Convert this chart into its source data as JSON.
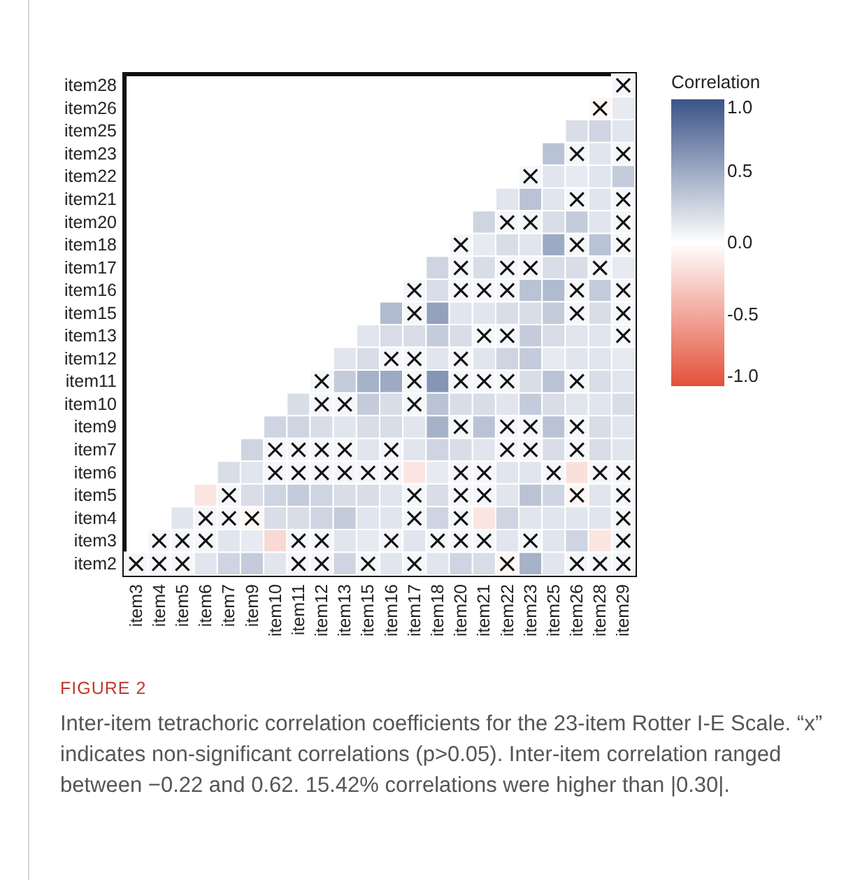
{
  "chart_data": {
    "type": "heatmap",
    "categories": [
      "item3",
      "item4",
      "item5",
      "item6",
      "item7",
      "item9",
      "item10",
      "item11",
      "item12",
      "item13",
      "item15",
      "item16",
      "item17",
      "item18",
      "item20",
      "item21",
      "item22",
      "item23",
      "item25",
      "item26",
      "item28",
      "item29"
    ],
    "y_categories": [
      "item28",
      "item26",
      "item25",
      "item23",
      "item22",
      "item21",
      "item20",
      "item18",
      "item17",
      "item16",
      "item15",
      "item13",
      "item12",
      "item11",
      "item10",
      "item9",
      "item7",
      "item6",
      "item5",
      "item4",
      "item3",
      "item2"
    ],
    "cells": [
      [
        null,
        null,
        null,
        null,
        null,
        null,
        null,
        null,
        null,
        null,
        null,
        null,
        null,
        null,
        null,
        null,
        null,
        null,
        null,
        null,
        null,
        0.05
      ],
      [
        null,
        null,
        null,
        null,
        null,
        null,
        null,
        null,
        null,
        null,
        null,
        null,
        null,
        null,
        null,
        null,
        null,
        null,
        null,
        null,
        -0.05,
        0.12
      ],
      [
        null,
        null,
        null,
        null,
        null,
        null,
        null,
        null,
        null,
        null,
        null,
        null,
        null,
        null,
        null,
        null,
        null,
        null,
        null,
        0.2,
        0.25,
        0.15
      ],
      [
        null,
        null,
        null,
        null,
        null,
        null,
        null,
        null,
        null,
        null,
        null,
        null,
        null,
        null,
        null,
        null,
        null,
        null,
        0.35,
        0.05,
        0.15,
        0.05
      ],
      [
        null,
        null,
        null,
        null,
        null,
        null,
        null,
        null,
        null,
        null,
        null,
        null,
        null,
        null,
        null,
        null,
        null,
        0.05,
        0.15,
        0.12,
        0.15,
        0.3
      ],
      [
        null,
        null,
        null,
        null,
        null,
        null,
        null,
        null,
        null,
        null,
        null,
        null,
        null,
        null,
        null,
        null,
        0.15,
        0.35,
        0.15,
        0.05,
        0.15,
        0.05
      ],
      [
        null,
        null,
        null,
        null,
        null,
        null,
        null,
        null,
        null,
        null,
        null,
        null,
        null,
        null,
        null,
        0.25,
        0.05,
        0.05,
        0.2,
        0.3,
        0.15,
        0.05
      ],
      [
        null,
        null,
        null,
        null,
        null,
        null,
        null,
        null,
        null,
        null,
        null,
        null,
        null,
        null,
        0.05,
        0.12,
        0.2,
        0.15,
        0.5,
        0.05,
        0.35,
        0.05
      ],
      [
        null,
        null,
        null,
        null,
        null,
        null,
        null,
        null,
        null,
        null,
        null,
        null,
        null,
        0.25,
        0.05,
        0.2,
        0.05,
        0.05,
        0.2,
        0.2,
        0.05,
        0.12
      ],
      [
        null,
        null,
        null,
        null,
        null,
        null,
        null,
        null,
        null,
        null,
        null,
        null,
        0.05,
        0.2,
        0.05,
        0.05,
        0.05,
        0.35,
        0.4,
        0.05,
        0.3,
        0.05
      ],
      [
        null,
        null,
        null,
        null,
        null,
        null,
        null,
        null,
        null,
        null,
        null,
        0.4,
        0.05,
        0.55,
        0.15,
        0.15,
        0.2,
        0.2,
        0.3,
        0.05,
        0.2,
        0.05
      ],
      [
        null,
        null,
        null,
        null,
        null,
        null,
        null,
        null,
        null,
        null,
        0.15,
        0.2,
        0.2,
        0.3,
        0.2,
        0.05,
        0.05,
        0.3,
        0.2,
        0.15,
        0.15,
        0.05
      ],
      [
        null,
        null,
        null,
        null,
        null,
        null,
        null,
        null,
        null,
        0.15,
        0.2,
        0.05,
        0.05,
        0.15,
        0.05,
        0.15,
        0.25,
        0.3,
        0.12,
        0.15,
        0.15,
        0.12
      ],
      [
        null,
        null,
        null,
        null,
        null,
        null,
        null,
        null,
        0.05,
        0.3,
        0.45,
        0.5,
        0.05,
        0.62,
        0.05,
        0.05,
        0.05,
        0.2,
        0.35,
        0.05,
        0.2,
        0.15
      ],
      [
        null,
        null,
        null,
        null,
        null,
        null,
        null,
        0.2,
        0.05,
        0.05,
        0.3,
        0.2,
        0.05,
        0.35,
        0.2,
        0.2,
        0.15,
        0.3,
        0.2,
        0.15,
        0.15,
        0.2
      ],
      [
        null,
        null,
        null,
        null,
        null,
        null,
        0.25,
        0.25,
        0.2,
        0.15,
        0.2,
        0.2,
        0.15,
        0.45,
        0.05,
        0.35,
        0.05,
        0.05,
        0.35,
        0.05,
        0.2,
        0.15
      ],
      [
        null,
        null,
        null,
        null,
        null,
        0.25,
        0.05,
        0.05,
        0.05,
        0.05,
        0.15,
        0.05,
        0.15,
        0.25,
        0.2,
        0.15,
        0.05,
        0.05,
        0.2,
        0.05,
        0.2,
        0.15
      ],
      [
        null,
        null,
        null,
        null,
        0.2,
        0.15,
        0.05,
        0.05,
        0.05,
        0.05,
        0.05,
        0.05,
        -0.15,
        0.12,
        0.05,
        0.05,
        0.15,
        0.15,
        0.05,
        -0.18,
        0.05,
        0.05
      ],
      [
        null,
        null,
        null,
        -0.15,
        0.05,
        0.2,
        0.25,
        0.3,
        0.25,
        0.2,
        0.2,
        0.15,
        0.05,
        0.2,
        0.05,
        0.05,
        0.15,
        0.35,
        0.25,
        -0.05,
        0.15,
        0.05
      ],
      [
        null,
        null,
        0.15,
        0.05,
        0.05,
        -0.05,
        0.2,
        0.2,
        0.25,
        0.3,
        0.15,
        0.15,
        0.05,
        0.25,
        0.05,
        -0.15,
        0.25,
        0.15,
        0.15,
        0.15,
        0.15,
        0.05
      ],
      [
        null,
        0.05,
        0.05,
        0.05,
        0.15,
        0.12,
        -0.22,
        0.05,
        0.05,
        0.15,
        0.12,
        0.05,
        0.15,
        0.05,
        0.05,
        0.05,
        0.15,
        0.05,
        0.15,
        0.25,
        -0.15,
        0.05
      ],
      [
        0.05,
        0.05,
        0.05,
        0.15,
        0.25,
        0.3,
        0.15,
        0.05,
        0.05,
        0.25,
        0.05,
        0.15,
        0.05,
        0.15,
        0.25,
        0.2,
        -0.05,
        0.45,
        0.15,
        0.05,
        0.05,
        0.05
      ]
    ],
    "cell_labels": [
      [
        null,
        null,
        null,
        null,
        null,
        null,
        null,
        null,
        null,
        null,
        null,
        null,
        null,
        null,
        null,
        null,
        null,
        null,
        null,
        null,
        null,
        "×"
      ],
      [
        null,
        null,
        null,
        null,
        null,
        null,
        null,
        null,
        null,
        null,
        null,
        null,
        null,
        null,
        null,
        null,
        null,
        null,
        null,
        null,
        "×",
        null
      ],
      [
        null,
        null,
        null,
        null,
        null,
        null,
        null,
        null,
        null,
        null,
        null,
        null,
        null,
        null,
        null,
        null,
        null,
        null,
        null,
        null,
        null,
        null
      ],
      [
        null,
        null,
        null,
        null,
        null,
        null,
        null,
        null,
        null,
        null,
        null,
        null,
        null,
        null,
        null,
        null,
        null,
        null,
        null,
        "×",
        null,
        "×"
      ],
      [
        null,
        null,
        null,
        null,
        null,
        null,
        null,
        null,
        null,
        null,
        null,
        null,
        null,
        null,
        null,
        null,
        null,
        "×",
        null,
        null,
        null,
        null
      ],
      [
        null,
        null,
        null,
        null,
        null,
        null,
        null,
        null,
        null,
        null,
        null,
        null,
        null,
        null,
        null,
        null,
        null,
        null,
        null,
        "×",
        null,
        "×"
      ],
      [
        null,
        null,
        null,
        null,
        null,
        null,
        null,
        null,
        null,
        null,
        null,
        null,
        null,
        null,
        null,
        null,
        "×",
        "×",
        null,
        null,
        null,
        "×"
      ],
      [
        null,
        null,
        null,
        null,
        null,
        null,
        null,
        null,
        null,
        null,
        null,
        null,
        null,
        null,
        "×",
        null,
        null,
        null,
        null,
        "×",
        null,
        "×"
      ],
      [
        null,
        null,
        null,
        null,
        null,
        null,
        null,
        null,
        null,
        null,
        null,
        null,
        null,
        null,
        "×",
        null,
        "×",
        "×",
        null,
        null,
        "×",
        null
      ],
      [
        null,
        null,
        null,
        null,
        null,
        null,
        null,
        null,
        null,
        null,
        null,
        null,
        "×",
        null,
        "×",
        "×",
        "×",
        null,
        null,
        "×",
        null,
        "×"
      ],
      [
        null,
        null,
        null,
        null,
        null,
        null,
        null,
        null,
        null,
        null,
        null,
        null,
        "×",
        null,
        null,
        null,
        null,
        null,
        null,
        "×",
        null,
        "×"
      ],
      [
        null,
        null,
        null,
        null,
        null,
        null,
        null,
        null,
        null,
        null,
        null,
        null,
        null,
        null,
        null,
        "×",
        "×",
        null,
        null,
        null,
        null,
        "×"
      ],
      [
        null,
        null,
        null,
        null,
        null,
        null,
        null,
        null,
        null,
        null,
        null,
        "×",
        "×",
        null,
        "×",
        null,
        null,
        null,
        null,
        null,
        null,
        null
      ],
      [
        null,
        null,
        null,
        null,
        null,
        null,
        null,
        null,
        "×",
        null,
        null,
        null,
        "×",
        null,
        "×",
        "×",
        "×",
        null,
        null,
        "×",
        null,
        null
      ],
      [
        null,
        null,
        null,
        null,
        null,
        null,
        null,
        null,
        "×",
        "×",
        null,
        null,
        "×",
        null,
        null,
        null,
        null,
        null,
        null,
        null,
        null,
        null
      ],
      [
        null,
        null,
        null,
        null,
        null,
        null,
        null,
        null,
        null,
        null,
        null,
        null,
        null,
        null,
        "×",
        null,
        "×",
        "×",
        null,
        "×",
        null,
        null
      ],
      [
        null,
        null,
        null,
        null,
        null,
        null,
        "×",
        "×",
        "×",
        "×",
        null,
        "×",
        null,
        null,
        null,
        null,
        "×",
        "×",
        null,
        "×",
        null,
        null
      ],
      [
        null,
        null,
        null,
        null,
        null,
        null,
        "×",
        "×",
        "×",
        "×",
        "×",
        "×",
        null,
        null,
        "×",
        "×",
        null,
        null,
        "×",
        null,
        "×",
        "×"
      ],
      [
        null,
        null,
        null,
        null,
        "×",
        null,
        null,
        null,
        null,
        null,
        null,
        null,
        "×",
        null,
        "×",
        "×",
        null,
        null,
        null,
        "×",
        null,
        "×"
      ],
      [
        null,
        null,
        null,
        "×",
        "×",
        "×",
        null,
        null,
        null,
        null,
        null,
        null,
        "×",
        null,
        "×",
        null,
        null,
        null,
        null,
        null,
        null,
        "×"
      ],
      [
        null,
        "×",
        "×",
        "×",
        null,
        null,
        null,
        "×",
        "×",
        null,
        null,
        "×",
        null,
        "×",
        "×",
        "×",
        null,
        "×",
        null,
        null,
        null,
        "×"
      ],
      [
        "×",
        "×",
        "×",
        null,
        null,
        null,
        null,
        "×",
        "×",
        null,
        "×",
        null,
        "×",
        null,
        null,
        null,
        "×",
        null,
        null,
        "×",
        "×",
        "×"
      ]
    ],
    "legend_title": "Correlation",
    "clim": [
      -1,
      1
    ],
    "cticks": [
      {
        "value": -1,
        "label": "-1.0"
      },
      -0.5,
      {
        "value": 0,
        "label": "0.0"
      },
      0.5,
      {
        "value": 1,
        "label": "1.0"
      }
    ],
    "annotations": [
      "FIGURE 2",
      "Inter-item tetrachoric correlation coefficients for the 23-item Rotter I-E Scale. “x” indicates non-significant correlations (p>0.05). Inter-item correlation ranged between −0.22 and 0.62. 15.42% correlations were higher than |0.30|."
    ]
  }
}
